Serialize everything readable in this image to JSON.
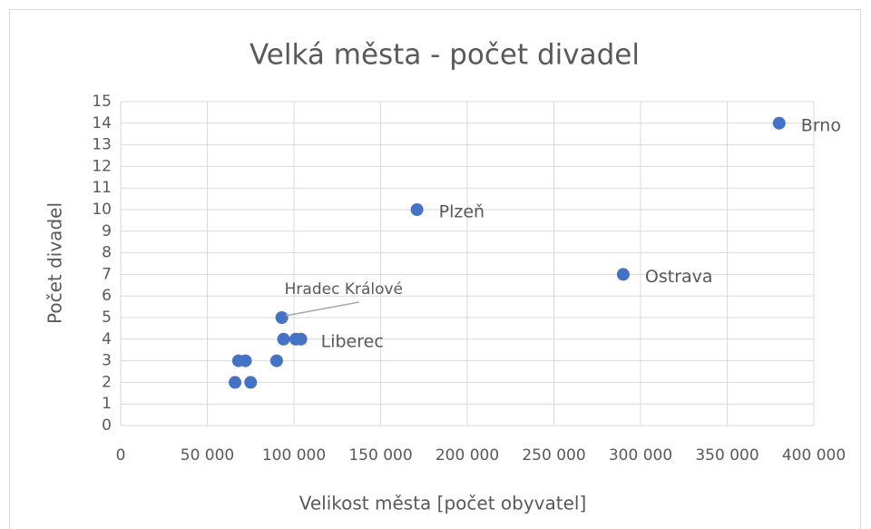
{
  "chart_data": {
    "type": "scatter",
    "title": "Velká města - počet divadel",
    "x_label": "Velikost města [počet obyvatel]",
    "y_label": "Počet divadel",
    "color": "#4472c4",
    "grid": true,
    "x": [
      380000,
      171000,
      290000,
      93000,
      104000,
      94000,
      101000,
      68000,
      72000,
      90000,
      66000,
      75000
    ],
    "y": [
      14,
      10,
      7,
      5,
      4,
      4,
      4,
      3,
      3,
      3,
      2,
      2
    ],
    "point_labels": [
      "Brno",
      "Plzeň",
      "Ostrava",
      "Hradec Králové",
      "Liberec",
      null,
      null,
      null,
      null,
      null,
      null,
      null
    ],
    "xlim": [
      0,
      400000
    ],
    "xticks": [
      0,
      {
        "value": 50000,
        "label": "50 000"
      },
      {
        "value": 100000,
        "label": "100 000"
      },
      {
        "value": 150000,
        "label": "150 000"
      },
      {
        "value": 200000,
        "label": "200 000"
      },
      {
        "value": 250000,
        "label": "250 000"
      },
      {
        "value": 300000,
        "label": "300 000"
      },
      {
        "value": 350000,
        "label": "350 000"
      },
      {
        "value": 400000,
        "label": "400 000"
      }
    ],
    "ylim": [
      0,
      15
    ],
    "yticks": [
      0,
      1,
      2,
      3,
      4,
      5,
      6,
      7,
      8,
      9,
      10,
      11,
      12,
      13,
      14,
      15
    ]
  }
}
